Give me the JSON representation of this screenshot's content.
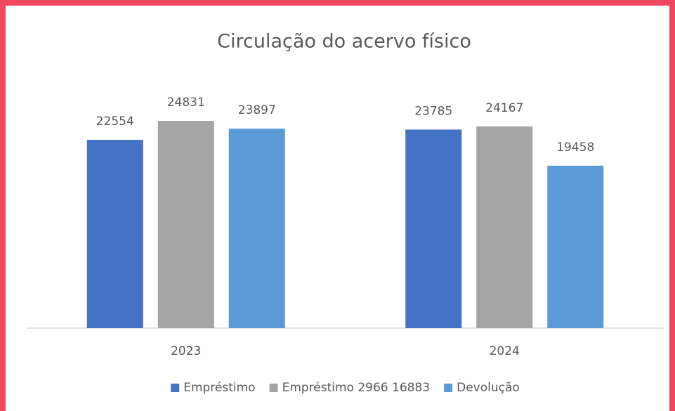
{
  "chart_data": {
    "type": "bar",
    "title": "Circulação do acervo físico",
    "categories": [
      "2023",
      "2024"
    ],
    "series": [
      {
        "name": "Empréstimo",
        "color": "#4472c4",
        "values": [
          22554,
          23785
        ]
      },
      {
        "name": "Empréstimo 2966 16883",
        "color": "#a5a5a5",
        "values": [
          24831,
          24167
        ]
      },
      {
        "name": "Devolução",
        "color": "#5b9bd5",
        "values": [
          23897,
          19458
        ]
      }
    ],
    "legend": "bottom",
    "data_labels": true
  }
}
